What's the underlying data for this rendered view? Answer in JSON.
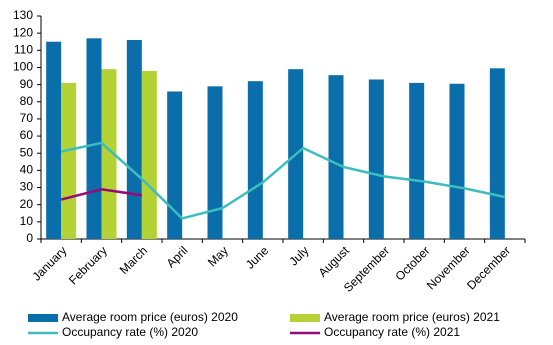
{
  "chart_data": {
    "type": "combo",
    "categories": [
      "January",
      "February",
      "March",
      "April",
      "May",
      "June",
      "July",
      "August",
      "September",
      "October",
      "November",
      "December"
    ],
    "series": [
      {
        "name": "Average room price (euros) 2020",
        "type": "bar",
        "color": "#0a6eaa",
        "values": [
          115,
          117,
          116,
          86,
          89,
          92,
          99,
          95.5,
          93,
          91,
          90.5,
          99.5
        ]
      },
      {
        "name": "Average room price (euros) 2021",
        "type": "bar",
        "color": "#b4d235",
        "values": [
          91,
          99,
          98,
          null,
          null,
          null,
          null,
          null,
          null,
          null,
          null,
          null
        ]
      },
      {
        "name": "Occupancy rate (%) 2020",
        "type": "line",
        "color": "#3cbebe",
        "values": [
          51,
          56,
          35,
          12,
          18,
          33,
          53,
          42,
          36.5,
          33.5,
          29.5,
          24.5
        ]
      },
      {
        "name": "Occupancy rate (%) 2021",
        "type": "line",
        "color": "#960a78",
        "values": [
          23,
          29,
          25.5,
          null,
          null,
          null,
          null,
          null,
          null,
          null,
          null,
          null
        ]
      }
    ],
    "ylim": [
      0,
      130
    ],
    "yticks": [
      0,
      10,
      20,
      30,
      40,
      50,
      60,
      70,
      80,
      90,
      100,
      110,
      120,
      130
    ],
    "grid": false
  }
}
